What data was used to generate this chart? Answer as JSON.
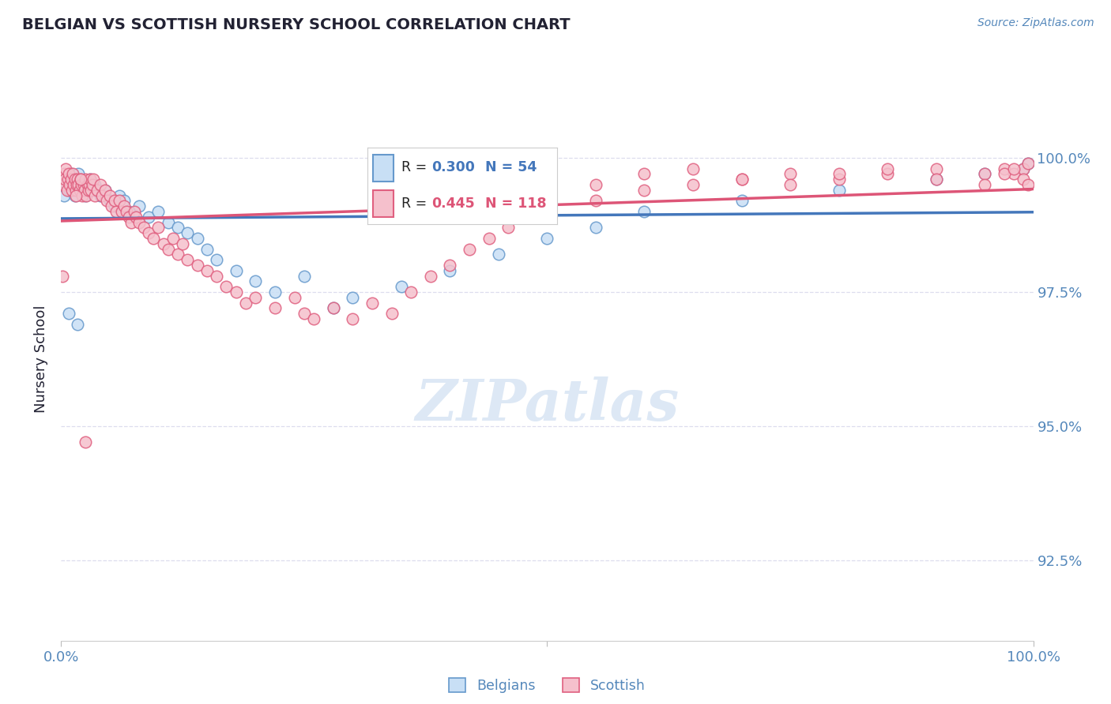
{
  "title": "BELGIAN VS SCOTTISH NURSERY SCHOOL CORRELATION CHART",
  "source": "Source: ZipAtlas.com",
  "ylabel": "Nursery School",
  "yticks": [
    92.5,
    95.0,
    97.5,
    100.0
  ],
  "ytick_labels": [
    "92.5%",
    "95.0%",
    "97.5%",
    "100.0%"
  ],
  "xlim": [
    0.0,
    100.0
  ],
  "ylim": [
    91.0,
    101.5
  ],
  "belgian_fill": "#c8dff5",
  "belgian_edge": "#6699cc",
  "scottish_fill": "#f5c0cc",
  "scottish_edge": "#e06080",
  "belgian_line_color": "#4477bb",
  "scottish_line_color": "#dd5577",
  "axis_label_color": "#5588bb",
  "title_color": "#222233",
  "grid_color": "#ddddee",
  "background_color": "#ffffff",
  "watermark_color": "#dde8f5",
  "legend_bg": "#ffffff",
  "legend_border": "#cccccc",
  "R_belgian": "0.300",
  "N_belgian": "54",
  "R_scottish": "0.445",
  "N_scottish": "118",
  "belgian_x": [
    0.3,
    0.5,
    0.7,
    0.9,
    1.0,
    1.1,
    1.2,
    1.3,
    1.4,
    1.5,
    1.6,
    1.8,
    2.0,
    2.2,
    2.5,
    3.0,
    3.2,
    3.5,
    4.0,
    4.5,
    5.0,
    5.5,
    6.0,
    6.5,
    7.0,
    8.0,
    9.0,
    10.0,
    11.0,
    12.0,
    13.0,
    14.0,
    15.0,
    16.0,
    18.0,
    20.0,
    22.0,
    25.0,
    28.0,
    30.0,
    35.0,
    40.0,
    45.0,
    50.0,
    55.0,
    60.0,
    70.0,
    80.0,
    90.0,
    95.0,
    99.0,
    99.5,
    0.8,
    1.7
  ],
  "belgian_y": [
    99.3,
    99.5,
    99.6,
    99.4,
    99.7,
    99.5,
    99.6,
    99.4,
    99.3,
    99.6,
    99.5,
    99.7,
    99.4,
    99.5,
    99.3,
    99.6,
    99.4,
    99.5,
    99.3,
    99.4,
    99.2,
    99.1,
    99.3,
    99.2,
    99.0,
    99.1,
    98.9,
    99.0,
    98.8,
    98.7,
    98.6,
    98.5,
    98.3,
    98.1,
    97.9,
    97.7,
    97.5,
    97.8,
    97.2,
    97.4,
    97.6,
    97.9,
    98.2,
    98.5,
    98.7,
    99.0,
    99.2,
    99.4,
    99.6,
    99.7,
    99.8,
    99.9,
    97.1,
    96.9
  ],
  "scottish_x": [
    0.2,
    0.3,
    0.4,
    0.5,
    0.6,
    0.7,
    0.8,
    0.9,
    1.0,
    1.1,
    1.2,
    1.3,
    1.4,
    1.5,
    1.6,
    1.7,
    1.8,
    1.9,
    2.0,
    2.1,
    2.2,
    2.3,
    2.4,
    2.5,
    2.6,
    2.7,
    2.8,
    2.9,
    3.0,
    3.1,
    3.2,
    3.3,
    3.5,
    3.7,
    4.0,
    4.2,
    4.5,
    4.7,
    5.0,
    5.2,
    5.5,
    5.7,
    6.0,
    6.2,
    6.5,
    6.7,
    7.0,
    7.2,
    7.5,
    7.7,
    8.0,
    8.5,
    9.0,
    9.5,
    10.0,
    10.5,
    11.0,
    11.5,
    12.0,
    12.5,
    13.0,
    14.0,
    15.0,
    16.0,
    17.0,
    18.0,
    19.0,
    20.0,
    22.0,
    24.0,
    25.0,
    26.0,
    28.0,
    30.0,
    32.0,
    34.0,
    36.0,
    38.0,
    40.0,
    42.0,
    44.0,
    46.0,
    48.0,
    50.0,
    55.0,
    60.0,
    65.0,
    70.0,
    75.0,
    80.0,
    85.0,
    90.0,
    95.0,
    97.0,
    98.0,
    99.0,
    99.5,
    1.5,
    2.0,
    35.0,
    40.0,
    45.0,
    50.0,
    55.0,
    60.0,
    65.0,
    70.0,
    75.0,
    80.0,
    85.0,
    90.0,
    95.0,
    97.0,
    98.0,
    99.0,
    99.5,
    0.15,
    2.5
  ],
  "scottish_y": [
    99.5,
    99.7,
    99.6,
    99.8,
    99.4,
    99.6,
    99.7,
    99.5,
    99.6,
    99.4,
    99.7,
    99.5,
    99.6,
    99.4,
    99.5,
    99.6,
    99.5,
    99.4,
    99.6,
    99.5,
    99.3,
    99.5,
    99.4,
    99.6,
    99.3,
    99.5,
    99.4,
    99.5,
    99.6,
    99.4,
    99.5,
    99.6,
    99.3,
    99.4,
    99.5,
    99.3,
    99.4,
    99.2,
    99.3,
    99.1,
    99.2,
    99.0,
    99.2,
    99.0,
    99.1,
    99.0,
    98.9,
    98.8,
    99.0,
    98.9,
    98.8,
    98.7,
    98.6,
    98.5,
    98.7,
    98.4,
    98.3,
    98.5,
    98.2,
    98.4,
    98.1,
    98.0,
    97.9,
    97.8,
    97.6,
    97.5,
    97.3,
    97.4,
    97.2,
    97.4,
    97.1,
    97.0,
    97.2,
    97.0,
    97.3,
    97.1,
    97.5,
    97.8,
    98.0,
    98.3,
    98.5,
    98.7,
    98.9,
    99.0,
    99.2,
    99.4,
    99.5,
    99.6,
    99.7,
    99.6,
    99.7,
    99.8,
    99.7,
    99.8,
    99.7,
    99.8,
    99.9,
    99.3,
    99.6,
    99.5,
    99.7,
    99.8,
    99.6,
    99.5,
    99.7,
    99.8,
    99.6,
    99.5,
    99.7,
    99.8,
    99.6,
    99.5,
    99.7,
    99.8,
    99.6,
    99.5,
    97.8,
    94.7
  ]
}
